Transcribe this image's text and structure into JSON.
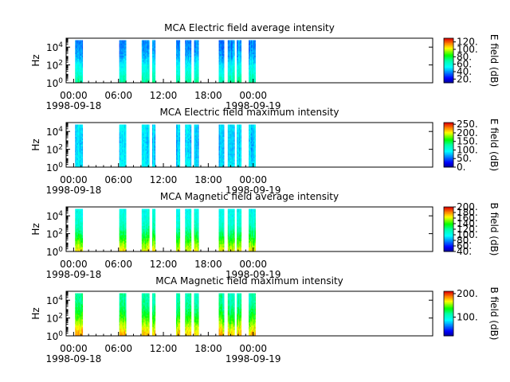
{
  "chart_data": [
    {
      "type": "heatmap",
      "title": "MCA  Electric field average intensity",
      "ylabel": "Hz",
      "ylim": [
        1,
        100000
      ],
      "y_scale": "log",
      "y_ticks": [
        {
          "value": 1,
          "label": "10^0"
        },
        {
          "value": 100,
          "label": "10^2"
        },
        {
          "value": 10000,
          "label": "10^4"
        }
      ],
      "xlim_hours": [
        -1,
        48
      ],
      "x_ticks": [
        {
          "hour": 0,
          "label": "00:00"
        },
        {
          "hour": 6,
          "label": "06:00"
        },
        {
          "hour": 12,
          "label": "12:00"
        },
        {
          "hour": 18,
          "label": "18:00"
        },
        {
          "hour": 24,
          "label": "00:00"
        }
      ],
      "x_dates": [
        {
          "hour": 0,
          "label": "1998-09-18"
        },
        {
          "hour": 24,
          "label": "1998-09-19"
        }
      ],
      "colorbar": {
        "label": "E field (dB)",
        "range": [
          10,
          130
        ],
        "ticks": [
          20,
          40,
          60,
          80,
          100,
          120
        ],
        "tick_labels": [
          "20.",
          "40.",
          "60.",
          "80.",
          "100.",
          "120."
        ]
      },
      "data_intervals_hours": [
        [
          0.2,
          1.2
        ],
        [
          6.1,
          7.0
        ],
        [
          9.1,
          10.1
        ],
        [
          10.5,
          10.9
        ],
        [
          13.7,
          14.2
        ],
        [
          14.9,
          15.7
        ],
        [
          16.1,
          16.7
        ],
        [
          19.4,
          20.1
        ],
        [
          20.6,
          21.5
        ],
        [
          21.8,
          22.4
        ],
        [
          23.4,
          24.3
        ]
      ],
      "spectrum_profile_db": [
        [
          1,
          72
        ],
        [
          10,
          62
        ],
        [
          100,
          54
        ],
        [
          1000,
          44
        ],
        [
          10000,
          40
        ],
        [
          60000,
          38
        ]
      ]
    },
    {
      "type": "heatmap",
      "title": "MCA  Electric field maximum intensity",
      "ylabel": "Hz",
      "ylim": [
        1,
        100000
      ],
      "y_scale": "log",
      "y_ticks": [
        {
          "value": 1,
          "label": "10^0"
        },
        {
          "value": 100,
          "label": "10^2"
        },
        {
          "value": 10000,
          "label": "10^4"
        }
      ],
      "xlim_hours": [
        -1,
        48
      ],
      "x_ticks": [
        {
          "hour": 0,
          "label": "00:00"
        },
        {
          "hour": 6,
          "label": "06:00"
        },
        {
          "hour": 12,
          "label": "12:00"
        },
        {
          "hour": 18,
          "label": "18:00"
        },
        {
          "hour": 24,
          "label": "00:00"
        }
      ],
      "x_dates": [
        {
          "hour": 0,
          "label": "1998-09-18"
        },
        {
          "hour": 24,
          "label": "1998-09-19"
        }
      ],
      "colorbar": {
        "label": "E field (dB)",
        "range": [
          0,
          260
        ],
        "ticks": [
          0,
          50,
          100,
          150,
          200,
          250
        ],
        "tick_labels": [
          "0.",
          "50.",
          "100.",
          "150.",
          "200.",
          "250."
        ]
      },
      "data_intervals_hours": [
        [
          0.2,
          1.2
        ],
        [
          6.1,
          7.0
        ],
        [
          9.1,
          10.1
        ],
        [
          10.5,
          10.9
        ],
        [
          13.7,
          14.2
        ],
        [
          14.9,
          15.7
        ],
        [
          16.1,
          16.7
        ],
        [
          19.4,
          20.1
        ],
        [
          20.6,
          21.5
        ],
        [
          21.8,
          22.4
        ],
        [
          23.4,
          24.3
        ]
      ],
      "spectrum_profile_db": [
        [
          1,
          92
        ],
        [
          10,
          86
        ],
        [
          100,
          82
        ],
        [
          1000,
          80
        ],
        [
          10000,
          86
        ],
        [
          60000,
          88
        ]
      ]
    },
    {
      "type": "heatmap",
      "title": "MCA  Magnetic field average intensity",
      "ylabel": "Hz",
      "ylim": [
        1,
        100000
      ],
      "y_scale": "log",
      "y_ticks": [
        {
          "value": 1,
          "label": "10^0"
        },
        {
          "value": 100,
          "label": "10^2"
        },
        {
          "value": 10000,
          "label": "10^4"
        }
      ],
      "xlim_hours": [
        -1,
        48
      ],
      "x_ticks": [
        {
          "hour": 0,
          "label": "00:00"
        },
        {
          "hour": 6,
          "label": "06:00"
        },
        {
          "hour": 12,
          "label": "12:00"
        },
        {
          "hour": 18,
          "label": "18:00"
        },
        {
          "hour": 24,
          "label": "00:00"
        }
      ],
      "x_dates": [
        {
          "hour": 0,
          "label": "1998-09-18"
        },
        {
          "hour": 24,
          "label": "1998-09-19"
        }
      ],
      "colorbar": {
        "label": "B field (dB)",
        "range": [
          40,
          200
        ],
        "ticks": [
          40,
          60,
          80,
          100,
          120,
          140,
          160,
          180,
          200
        ],
        "tick_labels": [
          "40.",
          "60.",
          "80.",
          "100.",
          "120.",
          "140.",
          "160.",
          "180.",
          "200."
        ]
      },
      "data_intervals_hours": [
        [
          0.2,
          1.2
        ],
        [
          6.1,
          7.0
        ],
        [
          9.1,
          10.1
        ],
        [
          10.5,
          10.9
        ],
        [
          13.7,
          14.2
        ],
        [
          14.9,
          15.7
        ],
        [
          16.1,
          16.7
        ],
        [
          19.4,
          20.1
        ],
        [
          20.6,
          21.5
        ],
        [
          21.8,
          22.4
        ],
        [
          23.4,
          24.3
        ]
      ],
      "spectrum_profile_db": [
        [
          1,
          168
        ],
        [
          10,
          148
        ],
        [
          100,
          128
        ],
        [
          1000,
          112
        ],
        [
          10000,
          105
        ],
        [
          60000,
          102
        ]
      ]
    },
    {
      "type": "heatmap",
      "title": "MCA  Magnetic field maximum intensity",
      "ylabel": "Hz",
      "ylim": [
        1,
        100000
      ],
      "y_scale": "log",
      "y_ticks": [
        {
          "value": 1,
          "label": "10^0"
        },
        {
          "value": 100,
          "label": "10^2"
        },
        {
          "value": 10000,
          "label": "10^4"
        }
      ],
      "xlim_hours": [
        -1,
        48
      ],
      "x_ticks": [
        {
          "hour": 0,
          "label": "00:00"
        },
        {
          "hour": 6,
          "label": "06:00"
        },
        {
          "hour": 12,
          "label": "12:00"
        },
        {
          "hour": 18,
          "label": "18:00"
        },
        {
          "hour": 24,
          "label": "00:00"
        }
      ],
      "x_dates": [
        {
          "hour": 0,
          "label": "1998-09-18"
        },
        {
          "hour": 24,
          "label": "1998-09-19"
        }
      ],
      "colorbar": {
        "label": "B field (dB)",
        "range": [
          20,
          210
        ],
        "ticks": [
          100,
          200
        ],
        "tick_labels": [
          "100.",
          "200."
        ]
      },
      "data_intervals_hours": [
        [
          0.2,
          1.2
        ],
        [
          6.1,
          7.0
        ],
        [
          9.1,
          10.1
        ],
        [
          10.5,
          10.9
        ],
        [
          13.7,
          14.2
        ],
        [
          14.9,
          15.7
        ],
        [
          16.1,
          16.7
        ],
        [
          19.4,
          20.1
        ],
        [
          20.6,
          21.5
        ],
        [
          21.8,
          22.4
        ],
        [
          23.4,
          24.3
        ]
      ],
      "spectrum_profile_db": [
        [
          1,
          180
        ],
        [
          10,
          162
        ],
        [
          100,
          140
        ],
        [
          1000,
          122
        ],
        [
          10000,
          112
        ],
        [
          60000,
          110
        ]
      ]
    }
  ]
}
